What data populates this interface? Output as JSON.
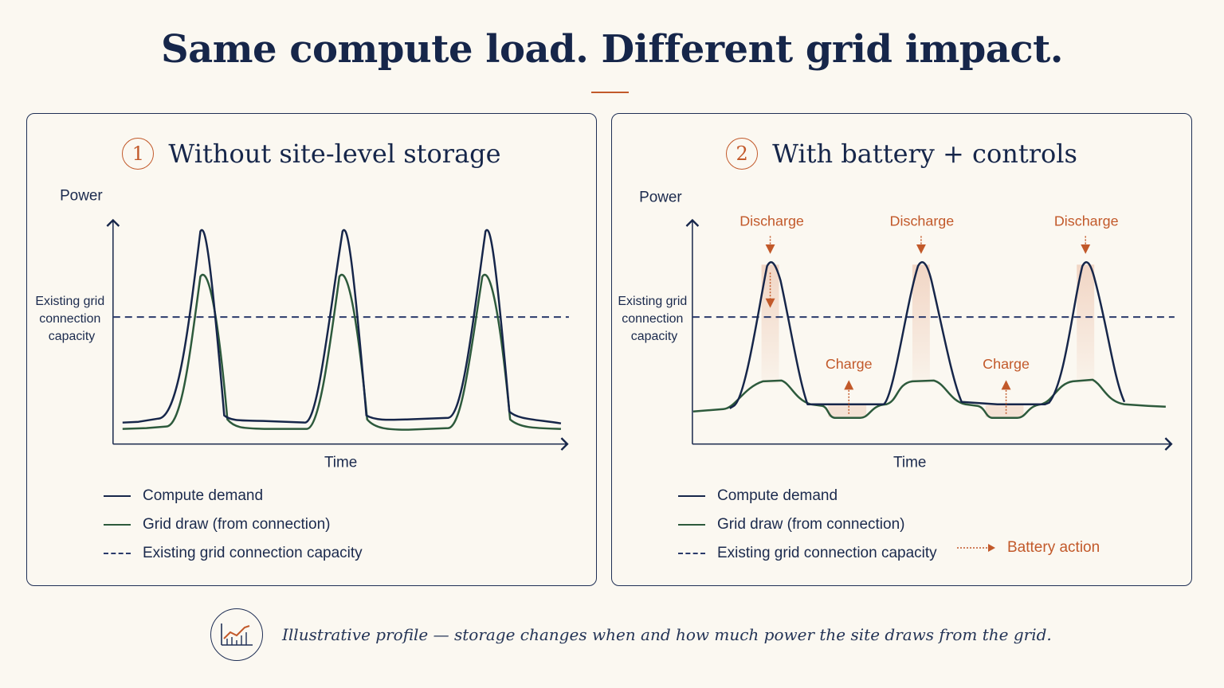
{
  "title": "Same compute load. Different grid impact.",
  "panels": [
    {
      "number": "1",
      "title": "Without site-level storage",
      "y_axis_label": "Power",
      "x_axis_label": "Time",
      "capacity_label": [
        "Existing grid",
        "connection",
        "capacity"
      ],
      "legend": [
        "Compute demand",
        "Grid draw (from connection)",
        "Existing grid connection capacity"
      ]
    },
    {
      "number": "2",
      "title": "With battery + controls",
      "y_axis_label": "Power",
      "x_axis_label": "Time",
      "capacity_label": [
        "Existing grid",
        "connection",
        "capacity"
      ],
      "annotations": {
        "discharge": [
          "Discharge",
          "Discharge",
          "Discharge"
        ],
        "charge": [
          "Charge",
          "Charge"
        ]
      },
      "legend": [
        "Compute demand",
        "Grid draw (from connection)",
        "Existing grid connection capacity"
      ],
      "battery_legend": "Battery action"
    }
  ],
  "footer": {
    "icon": "line-chart-icon",
    "text": "Illustrative profile — storage changes when and how much power the site draws from the grid."
  },
  "colors": {
    "navy": "#16264a",
    "green": "#2d5a3c",
    "accent": "#c2592a",
    "background": "#fbf8f1"
  }
}
